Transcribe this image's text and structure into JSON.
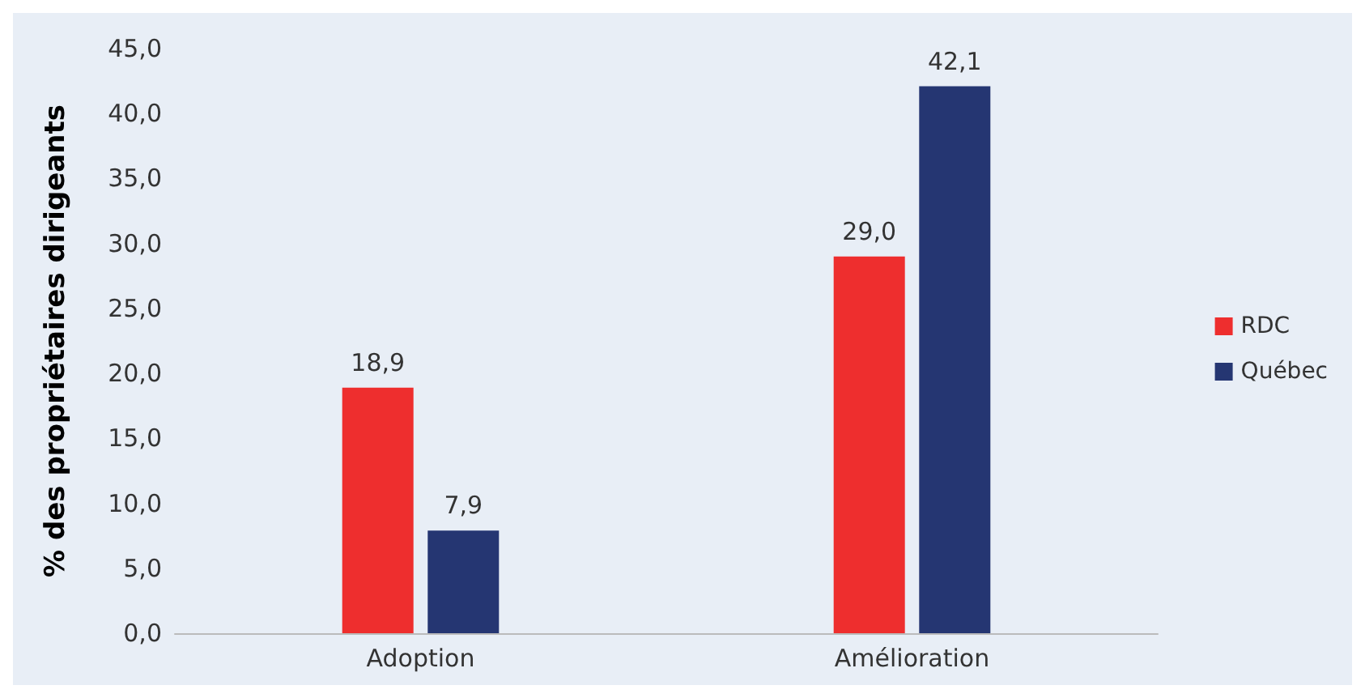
{
  "chart_data": {
    "type": "bar",
    "ylabel": "% des propriétaires dirigeants",
    "categories": [
      "Adoption",
      "Amélioration"
    ],
    "series": [
      {
        "name": "RDC",
        "color": "#ee2e2e",
        "values": [
          18.9,
          29.0
        ],
        "value_labels": [
          "18,9",
          "29,0"
        ]
      },
      {
        "name": "Québec",
        "color": "#253672",
        "values": [
          7.9,
          42.1
        ],
        "value_labels": [
          "7,9",
          "42,1"
        ]
      }
    ],
    "ylim": [
      0,
      45
    ],
    "yticks": [
      {
        "value": 0,
        "label": "0,0"
      },
      {
        "value": 5,
        "label": "5,0"
      },
      {
        "value": 10,
        "label": "10,0"
      },
      {
        "value": 15,
        "label": "15,0"
      },
      {
        "value": 20,
        "label": "20,0"
      },
      {
        "value": 25,
        "label": "25,0"
      },
      {
        "value": 30,
        "label": "30,0"
      },
      {
        "value": 35,
        "label": "35,0"
      },
      {
        "value": 40,
        "label": "40,0"
      },
      {
        "value": 45,
        "label": "45,0"
      }
    ],
    "grid": false,
    "legend": "right"
  }
}
